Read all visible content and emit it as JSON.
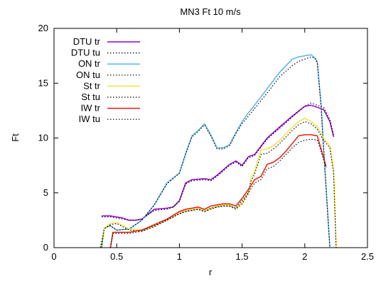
{
  "chart_data": {
    "type": "line",
    "title": "MN3 Ft 10 m/s",
    "xlabel": "r",
    "ylabel": "Ft",
    "xlim": [
      0,
      2.5
    ],
    "ylim": [
      0,
      20
    ],
    "xticks": [
      "0",
      "0.5",
      "1",
      "1.5",
      "2",
      "2.5"
    ],
    "yticks": [
      "0",
      "5",
      "10",
      "15",
      "20"
    ],
    "grid": false,
    "legend_position": "top-left",
    "series": [
      {
        "name": "DTU tr",
        "color": "#9400d3",
        "dash": "solid",
        "x": [
          0.38,
          0.45,
          0.5,
          0.55,
          0.6,
          0.65,
          0.7,
          0.8,
          0.9,
          0.95,
          1.0,
          1.05,
          1.1,
          1.2,
          1.25,
          1.3,
          1.4,
          1.45,
          1.5,
          1.55,
          1.6,
          1.7,
          1.8,
          1.9,
          2.0,
          2.05,
          2.1,
          2.15,
          2.2,
          2.23
        ],
        "y": [
          2.9,
          2.9,
          2.8,
          2.7,
          2.5,
          2.5,
          2.6,
          3.5,
          3.6,
          3.7,
          4.3,
          5.9,
          6.2,
          6.3,
          6.2,
          6.6,
          7.6,
          7.9,
          7.5,
          8.3,
          8.5,
          10.0,
          11.0,
          12.0,
          12.9,
          13.0,
          12.8,
          12.6,
          11.5,
          10.1
        ]
      },
      {
        "name": "DTU tu",
        "color": "#000000",
        "dash": "dot",
        "x": [
          0.38,
          0.45,
          0.5,
          0.55,
          0.6,
          0.65,
          0.7,
          0.8,
          0.9,
          0.95,
          1.0,
          1.05,
          1.1,
          1.2,
          1.25,
          1.3,
          1.4,
          1.45,
          1.5,
          1.55,
          1.6,
          1.7,
          1.8,
          1.9,
          2.0,
          2.05,
          2.1,
          2.15,
          2.2,
          2.23
        ],
        "y": [
          2.8,
          2.8,
          2.7,
          2.6,
          2.5,
          2.5,
          2.6,
          3.4,
          3.5,
          3.7,
          4.2,
          5.8,
          6.1,
          6.2,
          6.1,
          6.5,
          7.5,
          7.8,
          7.4,
          8.2,
          8.4,
          9.9,
          10.9,
          11.9,
          12.9,
          13.2,
          13.0,
          12.8,
          11.7,
          10.3
        ]
      },
      {
        "name": "ON tr",
        "color": "#56b4e9",
        "dash": "solid",
        "x": [
          0.38,
          0.4,
          0.45,
          0.5,
          0.6,
          0.7,
          0.8,
          0.9,
          1.0,
          1.05,
          1.1,
          1.15,
          1.2,
          1.25,
          1.3,
          1.35,
          1.4,
          1.45,
          1.5,
          1.55,
          1.6,
          1.7,
          1.8,
          1.9,
          1.95,
          2.0,
          2.05,
          2.08,
          2.1,
          2.13,
          2.15,
          2.2
        ],
        "y": [
          0.0,
          1.8,
          2.0,
          1.6,
          1.7,
          2.5,
          3.9,
          5.9,
          6.8,
          8.6,
          10.2,
          10.7,
          11.3,
          10.3,
          9.1,
          9.1,
          9.4,
          10.5,
          11.5,
          12.3,
          13.0,
          14.5,
          16.0,
          17.2,
          17.4,
          17.5,
          17.6,
          17.3,
          17.0,
          13.0,
          9.0,
          0.0
        ]
      },
      {
        "name": "ON tu",
        "color": "#000000",
        "dash": "dot",
        "x": [
          0.38,
          0.4,
          0.45,
          0.5,
          0.6,
          0.7,
          0.8,
          0.9,
          1.0,
          1.05,
          1.1,
          1.15,
          1.2,
          1.25,
          1.3,
          1.35,
          1.4,
          1.45,
          1.5,
          1.55,
          1.6,
          1.7,
          1.8,
          1.9,
          1.95,
          2.0,
          2.05,
          2.08,
          2.1,
          2.13,
          2.15,
          2.2
        ],
        "y": [
          0.0,
          1.8,
          2.0,
          1.6,
          1.7,
          2.5,
          3.9,
          5.8,
          6.8,
          8.5,
          10.1,
          10.6,
          11.2,
          10.2,
          9.0,
          9.0,
          9.3,
          10.4,
          11.3,
          12.0,
          12.7,
          14.1,
          15.6,
          16.6,
          17.0,
          17.2,
          17.4,
          17.3,
          16.8,
          13.0,
          9.0,
          0.0
        ]
      },
      {
        "name": "St tr",
        "color": "#f0e442",
        "dash": "solid",
        "x": [
          0.37,
          0.4,
          0.45,
          0.5,
          0.55,
          0.6,
          0.7,
          0.8,
          0.9,
          1.0,
          1.05,
          1.1,
          1.15,
          1.2,
          1.25,
          1.3,
          1.35,
          1.4,
          1.45,
          1.5,
          1.55,
          1.57,
          1.6,
          1.65,
          1.7,
          1.75,
          1.8,
          1.9,
          1.95,
          2.0,
          2.05,
          2.1,
          2.15,
          2.2,
          2.23,
          2.25
        ],
        "y": [
          0.0,
          1.8,
          2.2,
          2.3,
          2.0,
          1.7,
          1.6,
          2.0,
          2.6,
          3.2,
          3.4,
          3.5,
          3.6,
          3.4,
          3.6,
          3.8,
          3.9,
          3.9,
          3.6,
          4.1,
          5.1,
          6.3,
          7.0,
          8.9,
          9.0,
          9.3,
          9.8,
          11.0,
          11.5,
          11.8,
          11.5,
          11.0,
          10.0,
          9.3,
          7.0,
          0.0
        ]
      },
      {
        "name": "St tu",
        "color": "#000000",
        "dash": "dot",
        "x": [
          0.37,
          0.4,
          0.45,
          0.5,
          0.55,
          0.6,
          0.7,
          0.8,
          0.9,
          1.0,
          1.05,
          1.1,
          1.15,
          1.2,
          1.25,
          1.3,
          1.35,
          1.4,
          1.45,
          1.5,
          1.55,
          1.57,
          1.6,
          1.65,
          1.7,
          1.75,
          1.8,
          1.9,
          1.95,
          2.0,
          2.05,
          2.1,
          2.15,
          2.2,
          2.23,
          2.25
        ],
        "y": [
          0.0,
          1.7,
          2.1,
          2.2,
          1.9,
          1.6,
          1.5,
          1.9,
          2.5,
          3.1,
          3.3,
          3.4,
          3.5,
          3.3,
          3.5,
          3.7,
          3.8,
          3.8,
          3.5,
          4.0,
          4.9,
          6.0,
          6.7,
          8.5,
          8.6,
          9.0,
          9.5,
          10.7,
          11.2,
          11.5,
          11.3,
          10.8,
          9.8,
          9.1,
          6.8,
          0.0
        ]
      },
      {
        "name": "IW tr",
        "color": "#e51e10",
        "dash": "solid",
        "x": [
          0.45,
          0.47,
          0.5,
          0.55,
          0.6,
          0.65,
          0.7,
          0.8,
          0.9,
          1.0,
          1.05,
          1.1,
          1.15,
          1.2,
          1.25,
          1.3,
          1.35,
          1.4,
          1.45,
          1.5,
          1.55,
          1.6,
          1.65,
          1.7,
          1.75,
          1.8,
          1.85,
          1.9,
          1.95,
          2.0,
          2.05,
          2.1,
          2.13,
          2.15,
          2.17
        ],
        "y": [
          0.0,
          1.4,
          1.4,
          1.4,
          1.4,
          1.5,
          1.6,
          2.1,
          2.6,
          3.3,
          3.5,
          3.6,
          3.7,
          3.5,
          3.8,
          3.9,
          4.0,
          4.0,
          3.8,
          4.5,
          5.3,
          6.2,
          6.5,
          7.6,
          7.8,
          8.2,
          8.8,
          9.5,
          10.2,
          10.3,
          10.3,
          10.2,
          9.0,
          8.2,
          7.4
        ]
      },
      {
        "name": "IW tu",
        "color": "#000000",
        "dash": "dot",
        "x": [
          0.45,
          0.47,
          0.5,
          0.55,
          0.6,
          0.65,
          0.7,
          0.8,
          0.9,
          1.0,
          1.05,
          1.1,
          1.15,
          1.2,
          1.25,
          1.3,
          1.35,
          1.4,
          1.45,
          1.5,
          1.55,
          1.6,
          1.65,
          1.7,
          1.75,
          1.8,
          1.85,
          1.9,
          1.95,
          2.0,
          2.05,
          2.1,
          2.13,
          2.15,
          2.17
        ],
        "y": [
          0.0,
          1.3,
          1.3,
          1.3,
          1.3,
          1.4,
          1.5,
          2.0,
          2.5,
          3.1,
          3.3,
          3.4,
          3.5,
          3.3,
          3.6,
          3.7,
          3.8,
          3.8,
          3.6,
          4.3,
          5.0,
          5.9,
          6.2,
          7.2,
          7.4,
          7.9,
          8.5,
          9.1,
          9.6,
          9.8,
          9.9,
          9.8,
          8.8,
          8.0,
          7.3
        ]
      }
    ]
  }
}
